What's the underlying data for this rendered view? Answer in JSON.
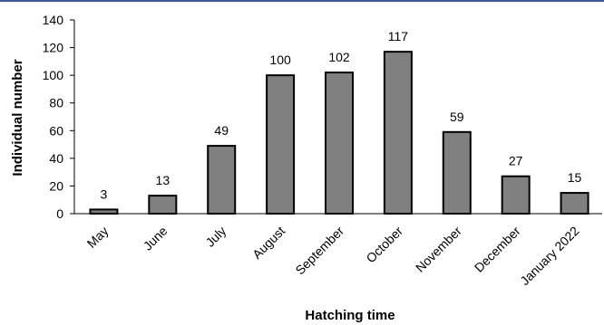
{
  "chart_data": {
    "type": "bar",
    "title": "",
    "xlabel": "Hatching time",
    "ylabel": "Individual number",
    "categories": [
      "May",
      "June",
      "July",
      "August",
      "September",
      "October",
      "November",
      "December",
      "January 2022"
    ],
    "values": [
      3,
      13,
      49,
      100,
      102,
      117,
      59,
      27,
      15
    ],
    "data_labels": [
      "3",
      "13",
      "49",
      "100",
      "102",
      "117",
      "59",
      "27",
      "15"
    ],
    "ylim": [
      0,
      140
    ],
    "yticks": [
      0,
      20,
      40,
      60,
      80,
      100,
      120,
      140
    ],
    "grid": false,
    "legend": "none",
    "colors": {
      "bar_fill": "#808080",
      "bar_stroke": "#000000",
      "axis": "#000000",
      "top_rule": "#3c5a99"
    }
  }
}
